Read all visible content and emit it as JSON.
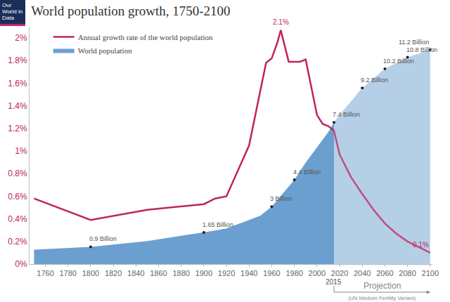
{
  "chart_data": {
    "type": "line",
    "title": "World population growth, 1750-2100",
    "logo": "Our World in Data",
    "xlim": [
      1746,
      2102
    ],
    "xticks": [
      1760,
      1780,
      1800,
      1820,
      1840,
      1860,
      1880,
      1900,
      1920,
      1940,
      1960,
      1980,
      2000,
      2020,
      2040,
      2060,
      2080,
      2100
    ],
    "ylim": [
      0,
      12.4
    ],
    "yticks": [],
    "y2lim": [
      0,
      2.1
    ],
    "y2ticks": [
      {
        "value": 0,
        "label": "0%"
      },
      {
        "value": 0.2,
        "label": "0.2%"
      },
      {
        "value": 0.4,
        "label": "0.4%"
      },
      {
        "value": 0.6,
        "label": "0.6%"
      },
      {
        "value": 0.8,
        "label": "0.8%"
      },
      {
        "value": 1,
        "label": "1%"
      },
      {
        "value": 1.2,
        "label": "1.2%"
      },
      {
        "value": 1.4,
        "label": "1.4%"
      },
      {
        "value": 1.6,
        "label": "1.6%"
      },
      {
        "value": 1.8,
        "label": "1.8%"
      },
      {
        "value": 2,
        "label": "2%"
      }
    ],
    "grid": false,
    "legend": "top left",
    "data_labels": true,
    "projection": {
      "x": 2015,
      "label": "2015",
      "text": "Projection",
      "note": "(UN Medium Fertility Variant)"
    },
    "series": [
      {
        "name": "Annual growth rate of the world population",
        "type": "line",
        "axis": "y2",
        "color": "#c0255d",
        "x": [
          1750,
          1800,
          1850,
          1900,
          1910,
          1920,
          1940,
          1955,
          1960,
          1965,
          1968,
          1975,
          1985,
          1990,
          2000,
          2005,
          2010,
          2015,
          2020,
          2030,
          2040,
          2050,
          2060,
          2070,
          2080,
          2090,
          2100
        ],
        "values": [
          0.58,
          0.39,
          0.48,
          0.53,
          0.58,
          0.6,
          1.05,
          1.78,
          1.82,
          1.96,
          2.07,
          1.79,
          1.79,
          1.81,
          1.32,
          1.24,
          1.22,
          1.18,
          0.97,
          0.77,
          0.62,
          0.48,
          0.36,
          0.27,
          0.2,
          0.15,
          0.1
        ],
        "value_labels": [
          null,
          null,
          null,
          null,
          null,
          null,
          null,
          null,
          null,
          null,
          "2.1%",
          null,
          null,
          null,
          null,
          null,
          null,
          null,
          null,
          null,
          null,
          null,
          null,
          null,
          null,
          null,
          "0.1%"
        ]
      },
      {
        "name": "World population",
        "type": "area",
        "color": "#6b9fcf",
        "x": [
          1750,
          1800,
          1850,
          1900,
          1910,
          1920,
          1930,
          1940,
          1950,
          1960,
          1970,
          1980,
          1990,
          2000,
          2010,
          2015,
          2020,
          2030,
          2040,
          2050,
          2060,
          2070,
          2080,
          2090,
          2100
        ],
        "values": [
          0.75,
          0.9,
          1.2,
          1.65,
          1.75,
          1.86,
          2.07,
          2.3,
          2.53,
          3,
          3.7,
          4.4,
          5.3,
          6.1,
          6.9,
          7.4,
          7.8,
          8.5,
          9.2,
          9.7,
          10.2,
          10.5,
          10.8,
          11.0,
          11.2
        ],
        "value_labels": [
          null,
          "0.9 Billion",
          null,
          "1.65 Billion",
          null,
          null,
          null,
          null,
          null,
          "3 Billion",
          null,
          "4.4 Billion",
          null,
          null,
          null,
          "7.4 Billion",
          null,
          null,
          "9.2 Billion",
          null,
          "10.2 Billion",
          null,
          "10.8 Billion",
          null,
          "11.2 Billion"
        ]
      }
    ]
  }
}
